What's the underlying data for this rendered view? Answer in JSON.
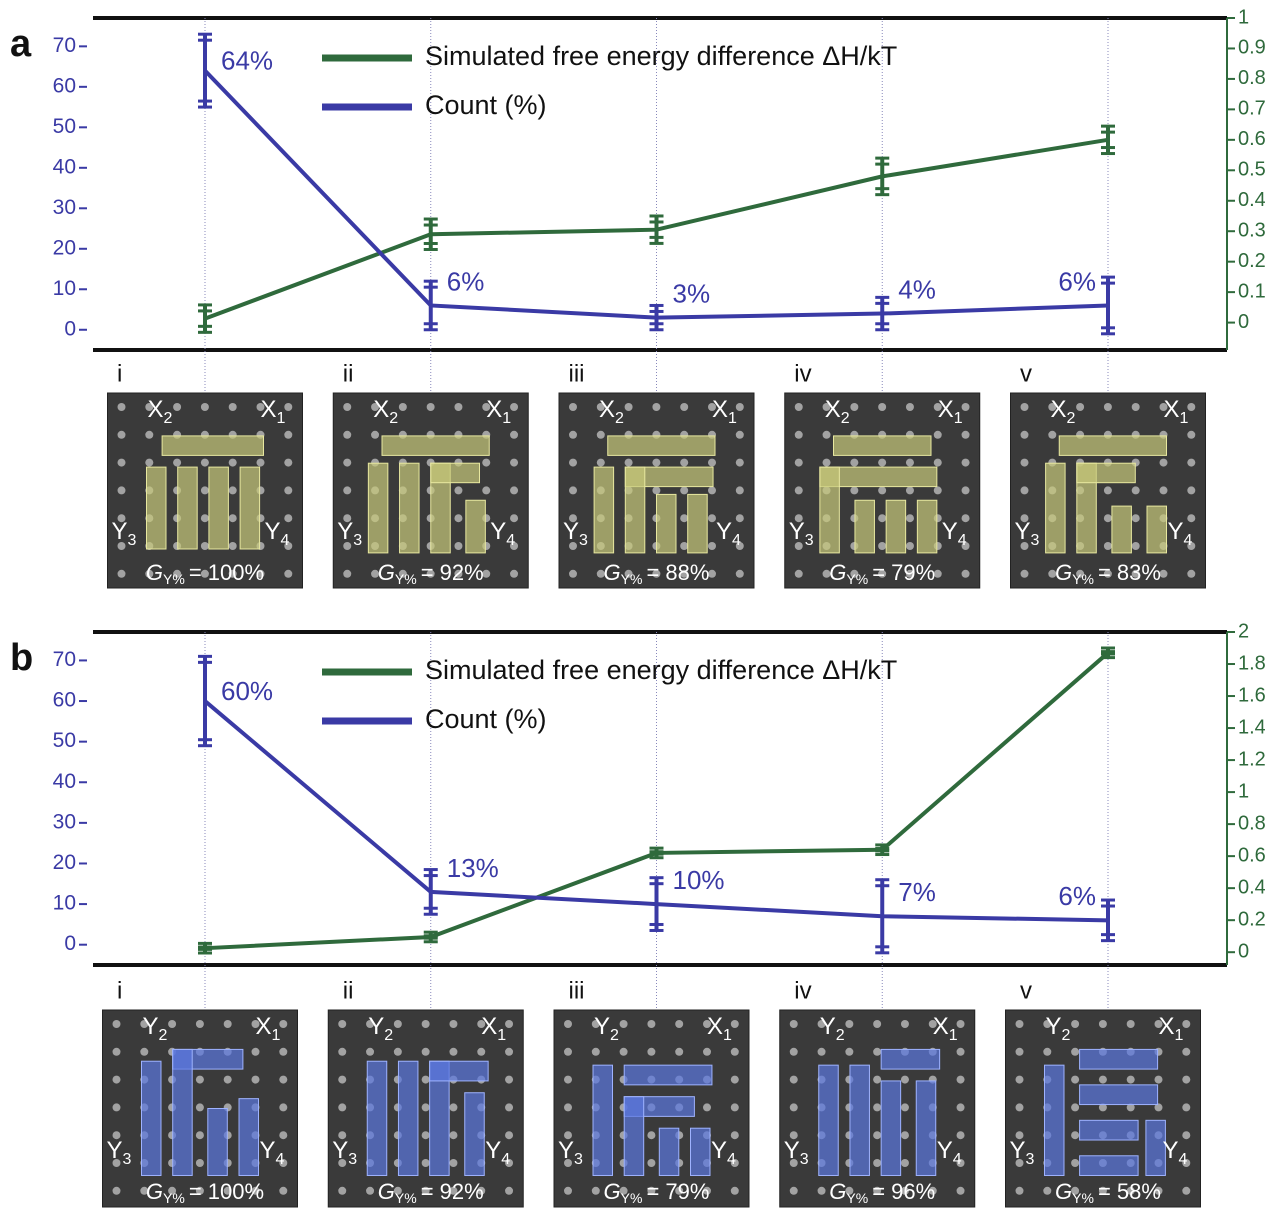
{
  "chart_data": [
    {
      "type": "line",
      "panel_label": "a",
      "categories": [
        "i",
        "ii",
        "iii",
        "iv",
        "v"
      ],
      "ylim": [
        -5,
        77
      ],
      "yticks": [
        0,
        10,
        20,
        30,
        40,
        50,
        60,
        70
      ],
      "y2lim": [
        -0.09,
        1
      ],
      "y2ticks": [
        0,
        0.1,
        0.2,
        0.3,
        0.4,
        0.5,
        0.6,
        0.7,
        0.8,
        0.9,
        1
      ],
      "series": [
        {
          "name": "Simulated free energy difference ΔH/kT",
          "color": "#2f6a3c",
          "axis": "y2",
          "values": [
            0.013,
            0.29,
            0.305,
            0.48,
            0.6
          ],
          "errors": [
            0.045,
            0.05,
            0.045,
            0.06,
            0.045
          ]
        },
        {
          "name": "Count (%)",
          "color": "#3a3aa5",
          "values": [
            64,
            6,
            3,
            4,
            6
          ],
          "errors": [
            9,
            6,
            3,
            4,
            7
          ],
          "value_labels": [
            "64%",
            "6%",
            "3%",
            "4%",
            "6%"
          ]
        }
      ],
      "corner_labels": [
        {
          "text": "X",
          "sub": "2"
        },
        {
          "text": "X",
          "sub": "1"
        },
        {
          "text": "Y",
          "sub": "3"
        },
        {
          "text": "Y",
          "sub": "4"
        }
      ],
      "gy_symbol": "G",
      "gy_sub": "Y%",
      "gy_labels": [
        "= 100%",
        "= 92%",
        "= 88%",
        "= 79%",
        "= 83%"
      ]
    },
    {
      "type": "line",
      "panel_label": "b",
      "categories": [
        "i",
        "ii",
        "iii",
        "iv",
        "v"
      ],
      "ylim": [
        -5,
        77
      ],
      "yticks": [
        0,
        10,
        20,
        30,
        40,
        50,
        60,
        70
      ],
      "y2lim": [
        -0.08,
        2
      ],
      "y2ticks": [
        0,
        0.2,
        0.4,
        0.6,
        0.8,
        1,
        1.2,
        1.4,
        1.6,
        1.8,
        2
      ],
      "series": [
        {
          "name": "Simulated free energy difference ΔH/kT",
          "color": "#2f6a3c",
          "axis": "y2",
          "values": [
            0.025,
            0.095,
            0.62,
            0.64,
            1.87
          ],
          "errors": [
            0.03,
            0.03,
            0.03,
            0.03,
            0.03
          ]
        },
        {
          "name": "Count (%)",
          "color": "#3a3aa5",
          "values": [
            60,
            13,
            10,
            7,
            6
          ],
          "errors": [
            11,
            5.5,
            6.5,
            9,
            5
          ],
          "value_labels": [
            "60%",
            "13%",
            "10%",
            "7%",
            "6%"
          ]
        }
      ],
      "corner_labels": [
        {
          "text": "Y",
          "sub": "2"
        },
        {
          "text": "X",
          "sub": "1"
        },
        {
          "text": "Y",
          "sub": "3"
        },
        {
          "text": "Y",
          "sub": "4"
        }
      ],
      "gy_symbol": "G",
      "gy_sub": "Y%",
      "gy_labels": [
        "= 100%",
        "= 92%",
        "= 79%",
        "= 96%",
        "= 58%"
      ]
    }
  ]
}
